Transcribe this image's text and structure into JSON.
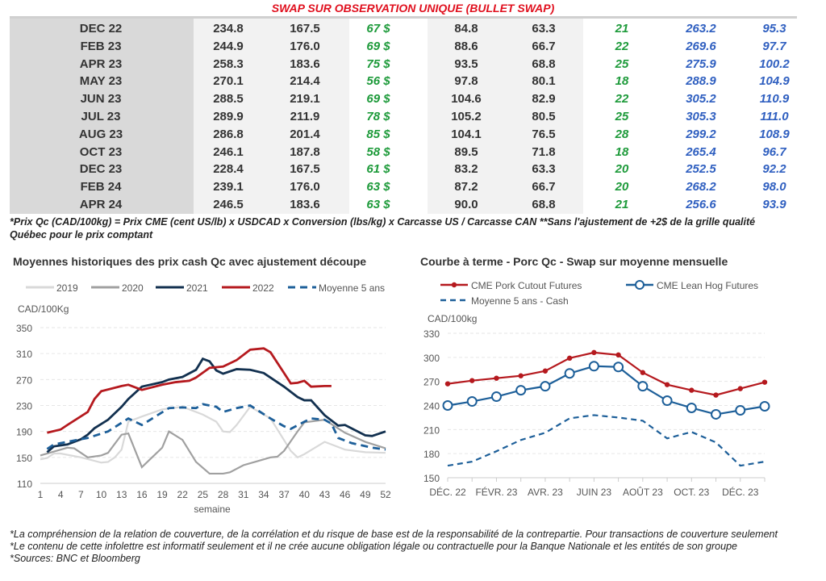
{
  "title": "SWAP SUR OBSERVATION UNIQUE (BULLET SWAP)",
  "table": {
    "rows": [
      [
        "DEC 22",
        "234.8",
        "167.5",
        "67 $",
        "84.8",
        "63.3",
        "21",
        "263.2",
        "95.3"
      ],
      [
        "FEB 23",
        "244.9",
        "176.0",
        "69 $",
        "88.6",
        "66.7",
        "22",
        "269.6",
        "97.7"
      ],
      [
        "APR 23",
        "258.3",
        "183.6",
        "75 $",
        "93.5",
        "68.8",
        "25",
        "275.9",
        "100.2"
      ],
      [
        "MAY 23",
        "270.1",
        "214.4",
        "56 $",
        "97.8",
        "80.1",
        "18",
        "288.9",
        "104.9"
      ],
      [
        "JUN 23",
        "288.5",
        "219.1",
        "69 $",
        "104.6",
        "82.9",
        "22",
        "305.2",
        "110.9"
      ],
      [
        "JUL 23",
        "289.9",
        "211.9",
        "78 $",
        "105.2",
        "80.5",
        "25",
        "305.3",
        "111.0"
      ],
      [
        "AUG 23",
        "286.8",
        "201.4",
        "85 $",
        "104.1",
        "76.5",
        "28",
        "299.2",
        "108.9"
      ],
      [
        "OCT 23",
        "246.1",
        "187.8",
        "58 $",
        "89.5",
        "71.8",
        "18",
        "265.4",
        "96.7"
      ],
      [
        "DEC 23",
        "228.4",
        "167.5",
        "61 $",
        "83.2",
        "63.3",
        "20",
        "252.5",
        "92.2"
      ],
      [
        "FEB 24",
        "239.1",
        "176.0",
        "63 $",
        "87.2",
        "66.7",
        "20",
        "268.2",
        "98.0"
      ],
      [
        "APR 24",
        "246.5",
        "183.6",
        "63 $",
        "90.0",
        "68.8",
        "21",
        "256.6",
        "93.9"
      ]
    ]
  },
  "footnote": "*Prix Qc (CAD/100kg) = Prix CME (cent US/lb) x USDCAD x Conversion (lbs/kg) x Carcasse US / Carcasse CAN **Sans l'ajustement de +2$ de la grille qualité Québec pour le prix comptant",
  "disclaimers": [
    "*La compréhension de la relation de couverture, de la corrélation et du risque de base est de la responsabilité de la contrepartie. Pour transactions de couverture seulement",
    "*Le contenu de cette infolettre est informatif seulement et il ne crée aucune obligation légale ou contractuelle pour la Banque Nationale et les entités de son groupe",
    "*Sources: BNC et Bloomberg"
  ],
  "chart_data": [
    {
      "type": "line",
      "title": "Moyennes historiques des prix cash Qc avec ajustement découpe",
      "ylabel": "CAD/100Kg",
      "xlabel": "semaine",
      "ylim": [
        110,
        350
      ],
      "yticks": [
        110,
        150,
        190,
        230,
        270,
        310,
        350
      ],
      "xticks": [
        1,
        4,
        7,
        10,
        13,
        16,
        19,
        22,
        25,
        28,
        31,
        34,
        37,
        40,
        43,
        46,
        49,
        52
      ],
      "legend": "top",
      "series": [
        {
          "name": "2019",
          "color": "#d9d9d9",
          "dash": false,
          "points": [
            [
              1,
              147
            ],
            [
              2,
              149
            ],
            [
              3,
              156
            ],
            [
              4,
              156
            ],
            [
              7,
              150
            ],
            [
              10,
              142
            ],
            [
              11,
              143
            ],
            [
              12,
              150
            ],
            [
              13,
              162
            ],
            [
              14,
              205
            ],
            [
              16,
              213
            ],
            [
              19,
              224
            ],
            [
              22,
              228
            ],
            [
              25,
              216
            ],
            [
              27,
              205
            ],
            [
              28,
              190
            ],
            [
              29,
              189
            ],
            [
              30,
              200
            ],
            [
              32,
              228
            ],
            [
              35,
              210
            ],
            [
              38,
              160
            ],
            [
              39,
              150
            ],
            [
              40,
              155
            ],
            [
              43,
              174
            ],
            [
              46,
              162
            ],
            [
              49,
              158
            ],
            [
              52,
              157
            ]
          ]
        },
        {
          "name": "2020",
          "color": "#a0a0a0",
          "dash": false,
          "points": [
            [
              1,
              153
            ],
            [
              4,
              162
            ],
            [
              5,
              165
            ],
            [
              6,
              164
            ],
            [
              8,
              150
            ],
            [
              10,
              153
            ],
            [
              11,
              157
            ],
            [
              13,
              185
            ],
            [
              14,
              187
            ],
            [
              16,
              135
            ],
            [
              19,
              165
            ],
            [
              20,
              190
            ],
            [
              22,
              177
            ],
            [
              24,
              143
            ],
            [
              26,
              125
            ],
            [
              28,
              125
            ],
            [
              29,
              127
            ],
            [
              31,
              138
            ],
            [
              33,
              144
            ],
            [
              35,
              150
            ],
            [
              36,
              151
            ],
            [
              37,
              160
            ],
            [
              39,
              190
            ],
            [
              40,
              204
            ],
            [
              43,
              208
            ],
            [
              46,
              188
            ],
            [
              49,
              174
            ],
            [
              52,
              164
            ]
          ]
        },
        {
          "name": "2021",
          "color": "#12304f",
          "dash": false,
          "points": [
            [
              2,
              158
            ],
            [
              3,
              167
            ],
            [
              5,
              170
            ],
            [
              7,
              178
            ],
            [
              8,
              185
            ],
            [
              9,
              195
            ],
            [
              11,
              208
            ],
            [
              13,
              228
            ],
            [
              14,
              240
            ],
            [
              16,
              259
            ],
            [
              19,
              266
            ],
            [
              20,
              270
            ],
            [
              22,
              274
            ],
            [
              24,
              285
            ],
            [
              25,
              302
            ],
            [
              26,
              298
            ],
            [
              27,
              284
            ],
            [
              28,
              279
            ],
            [
              30,
              286
            ],
            [
              32,
              285
            ],
            [
              34,
              280
            ],
            [
              37,
              259
            ],
            [
              39,
              243
            ],
            [
              40,
              238
            ],
            [
              41,
              238
            ],
            [
              43,
              215
            ],
            [
              45,
              199
            ],
            [
              46,
              200
            ],
            [
              49,
              184
            ],
            [
              50,
              183
            ],
            [
              52,
              190
            ]
          ]
        },
        {
          "name": "2022",
          "color": "#b5191e",
          "dash": false,
          "points": [
            [
              2,
              188
            ],
            [
              4,
              193
            ],
            [
              5,
              200
            ],
            [
              8,
              220
            ],
            [
              9,
              240
            ],
            [
              10,
              252
            ],
            [
              13,
              260
            ],
            [
              14,
              262
            ],
            [
              16,
              254
            ],
            [
              19,
              262
            ],
            [
              21,
              266
            ],
            [
              23,
              268
            ],
            [
              24,
              273
            ],
            [
              26,
              288
            ],
            [
              28,
              290
            ],
            [
              30,
              300
            ],
            [
              32,
              316
            ],
            [
              34,
              318
            ],
            [
              35,
              312
            ],
            [
              37,
              280
            ],
            [
              38,
              264
            ],
            [
              39,
              265
            ],
            [
              40,
              268
            ],
            [
              41,
              259
            ],
            [
              43,
              260
            ],
            [
              44,
              260
            ]
          ]
        },
        {
          "name": "Moyenne 5 ans",
          "color": "#1d5f99",
          "dash": true,
          "points": [
            [
              2,
              163
            ],
            [
              3,
              170
            ],
            [
              4,
              172
            ],
            [
              8,
              180
            ],
            [
              11,
              190
            ],
            [
              14,
              210
            ],
            [
              16,
              200
            ],
            [
              20,
              226
            ],
            [
              22,
              227
            ],
            [
              24,
              226
            ],
            [
              25,
              232
            ],
            [
              27,
              228
            ],
            [
              28,
              220
            ],
            [
              30,
              226
            ],
            [
              32,
              230
            ],
            [
              35,
              210
            ],
            [
              37,
              198
            ],
            [
              38,
              194
            ],
            [
              40,
              205
            ],
            [
              41,
              210
            ],
            [
              43,
              208
            ],
            [
              44,
              202
            ],
            [
              45,
              180
            ],
            [
              47,
              172
            ],
            [
              50,
              165
            ],
            [
              52,
              162
            ]
          ]
        }
      ]
    },
    {
      "type": "line",
      "title": "Courbe à terme - Porc Qc - Swap sur moyenne mensuelle",
      "ylabel": "CAD/100kg",
      "ylim": [
        150,
        330
      ],
      "yticks": [
        150,
        180,
        210,
        240,
        270,
        300,
        330
      ],
      "xlabels": [
        "DÉC. 22",
        "FÉVR. 23",
        "AVR. 23",
        "JUIN 23",
        "AOÛT 23",
        "OCT. 23",
        "DÉC. 23"
      ],
      "legend": "top",
      "x": [
        "Dec 22",
        "Jan 23",
        "Feb 23",
        "Mar 23",
        "Apr 23",
        "May 23",
        "Jun 23",
        "Jul 23",
        "Aug 23",
        "Sep 23",
        "Oct 23",
        "Nov 23",
        "Dec 23",
        "Jan 24"
      ],
      "series": [
        {
          "name": "CME Pork Cutout Futures",
          "color": "#b5191e",
          "marker": "dot",
          "values": [
            267,
            271,
            274,
            277,
            283,
            299,
            306,
            303,
            281,
            266,
            259,
            253,
            261,
            269
          ]
        },
        {
          "name": "CME Lean Hog Futures",
          "color": "#1d5f99",
          "marker": "circle",
          "values": [
            240,
            245,
            251,
            259,
            264,
            280,
            289,
            288,
            264,
            246,
            237,
            229,
            234,
            239
          ]
        },
        {
          "name": "Moyenne 5 ans - Cash",
          "color": "#1d5f99",
          "marker": "dash",
          "values": [
            165,
            170,
            183,
            197,
            206,
            224,
            228,
            225,
            221,
            199,
            207,
            194,
            165,
            170
          ]
        }
      ]
    }
  ]
}
